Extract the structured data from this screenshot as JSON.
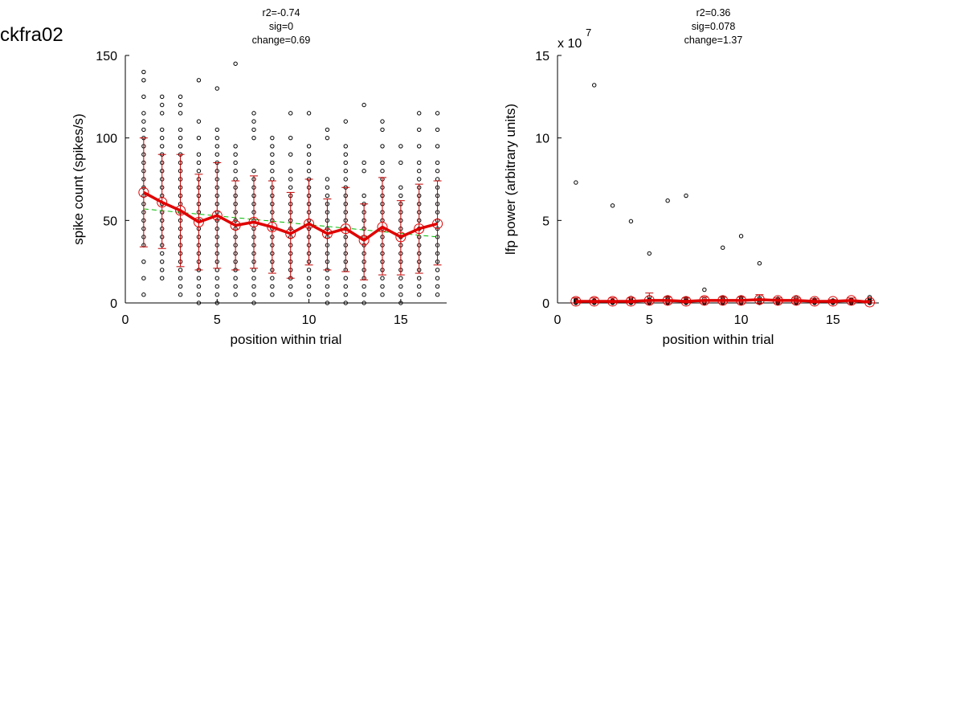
{
  "figure": {
    "title": "ckfra02"
  },
  "colors": {
    "points": "#000000",
    "mean_line": "#e00000",
    "error_bars": "#c00000",
    "fit_line": "#00bb00"
  },
  "chart_data": [
    {
      "type": "scatter",
      "stats": [
        "r2=-0.74",
        "sig=0",
        "change=0.69"
      ],
      "xlabel": "position within trial",
      "ylabel": "spike count (spikes/s)",
      "xlim": [
        0,
        17.5
      ],
      "ylim": [
        0,
        150
      ],
      "xticks": [
        0,
        5,
        10,
        15
      ],
      "yticks": [
        0,
        50,
        100,
        150
      ],
      "grid": false,
      "points": [
        {
          "x": 1,
          "y": [
            5,
            15,
            25,
            35,
            40,
            45,
            50,
            55,
            60,
            65,
            70,
            75,
            80,
            85,
            90,
            95,
            100,
            105,
            110,
            115,
            125,
            135,
            140
          ]
        },
        {
          "x": 2,
          "y": [
            15,
            20,
            25,
            30,
            35,
            40,
            45,
            50,
            55,
            60,
            65,
            70,
            75,
            80,
            85,
            90,
            95,
            100,
            105,
            115,
            120,
            125
          ]
        },
        {
          "x": 3,
          "y": [
            5,
            10,
            15,
            20,
            25,
            30,
            35,
            40,
            45,
            50,
            55,
            60,
            65,
            70,
            75,
            80,
            85,
            90,
            95,
            100,
            105,
            115,
            120,
            125
          ]
        },
        {
          "x": 4,
          "y": [
            0,
            5,
            10,
            15,
            20,
            25,
            30,
            35,
            40,
            45,
            50,
            55,
            60,
            65,
            70,
            75,
            80,
            85,
            90,
            100,
            110,
            135
          ]
        },
        {
          "x": 5,
          "y": [
            0,
            5,
            10,
            15,
            20,
            25,
            30,
            35,
            40,
            45,
            50,
            55,
            60,
            65,
            70,
            75,
            80,
            85,
            90,
            95,
            100,
            105,
            130
          ]
        },
        {
          "x": 6,
          "y": [
            5,
            10,
            15,
            20,
            25,
            30,
            35,
            40,
            45,
            50,
            55,
            60,
            65,
            70,
            75,
            80,
            85,
            90,
            95,
            145
          ]
        },
        {
          "x": 7,
          "y": [
            0,
            5,
            10,
            15,
            20,
            25,
            30,
            35,
            40,
            45,
            50,
            55,
            60,
            65,
            70,
            75,
            80,
            100,
            105,
            110,
            115
          ]
        },
        {
          "x": 8,
          "y": [
            5,
            10,
            15,
            20,
            25,
            30,
            35,
            40,
            45,
            50,
            55,
            60,
            65,
            70,
            75,
            80,
            85,
            90,
            95,
            100
          ]
        },
        {
          "x": 9,
          "y": [
            5,
            10,
            15,
            20,
            25,
            30,
            35,
            40,
            45,
            50,
            55,
            60,
            65,
            70,
            75,
            80,
            90,
            100,
            115
          ]
        },
        {
          "x": 10,
          "y": [
            5,
            10,
            15,
            20,
            25,
            30,
            35,
            40,
            45,
            50,
            55,
            60,
            65,
            70,
            75,
            80,
            85,
            90,
            95,
            115
          ]
        },
        {
          "x": 11,
          "y": [
            0,
            5,
            10,
            15,
            20,
            25,
            30,
            35,
            40,
            45,
            50,
            55,
            60,
            65,
            70,
            75,
            100,
            105
          ]
        },
        {
          "x": 12,
          "y": [
            0,
            5,
            10,
            15,
            20,
            25,
            30,
            35,
            40,
            45,
            50,
            55,
            60,
            65,
            70,
            75,
            80,
            85,
            90,
            95,
            110
          ]
        },
        {
          "x": 13,
          "y": [
            0,
            5,
            10,
            15,
            20,
            25,
            30,
            35,
            40,
            45,
            50,
            55,
            60,
            65,
            80,
            85,
            120
          ]
        },
        {
          "x": 14,
          "y": [
            5,
            10,
            15,
            20,
            25,
            30,
            35,
            40,
            45,
            50,
            55,
            60,
            65,
            70,
            75,
            80,
            85,
            95,
            105,
            110
          ]
        },
        {
          "x": 15,
          "y": [
            0,
            5,
            10,
            15,
            20,
            25,
            30,
            35,
            40,
            45,
            50,
            55,
            60,
            65,
            70,
            85,
            95
          ]
        },
        {
          "x": 16,
          "y": [
            5,
            10,
            15,
            20,
            25,
            30,
            35,
            40,
            45,
            50,
            55,
            60,
            65,
            70,
            75,
            80,
            85,
            95,
            105,
            115
          ]
        },
        {
          "x": 17,
          "y": [
            5,
            10,
            15,
            20,
            25,
            30,
            35,
            40,
            45,
            50,
            55,
            60,
            65,
            70,
            75,
            80,
            85,
            95,
            105,
            115
          ]
        }
      ],
      "mean": {
        "x": [
          1,
          2,
          3,
          4,
          5,
          6,
          7,
          8,
          9,
          10,
          11,
          12,
          13,
          14,
          15,
          16,
          17
        ],
        "y": [
          67,
          61,
          56,
          49,
          53,
          47,
          49,
          46,
          42,
          48,
          42,
          45,
          38,
          46,
          40,
          45,
          48
        ]
      },
      "error": {
        "x": [
          1,
          2,
          3,
          4,
          5,
          6,
          7,
          8,
          9,
          10,
          11,
          12,
          13,
          14,
          15,
          16,
          17
        ],
        "upper": [
          100,
          90,
          90,
          78,
          85,
          74,
          77,
          74,
          67,
          75,
          63,
          70,
          60,
          76,
          62,
          72,
          74
        ],
        "lower": [
          34,
          33,
          22,
          20,
          21,
          20,
          21,
          18,
          15,
          23,
          20,
          19,
          14,
          17,
          17,
          18,
          23
        ]
      },
      "fit": {
        "x": [
          1,
          17
        ],
        "y": [
          57,
          40
        ]
      }
    },
    {
      "type": "scatter",
      "stats": [
        "r2=0.36",
        "sig=0.078",
        "change=1.37"
      ],
      "xlabel": "position within trial",
      "ylabel": "lfp power (arbitrary units)",
      "axis_multiplier_base": "x 10",
      "axis_multiplier_exp": "7",
      "xlim": [
        0,
        17.5
      ],
      "ylim": [
        0,
        15
      ],
      "xticks": [
        0,
        5,
        10,
        15
      ],
      "yticks": [
        0,
        5,
        10,
        15
      ],
      "grid": false,
      "points": [
        {
          "x": 1,
          "y": [
            0,
            0.05,
            0.1,
            0.15,
            0.2,
            7.3
          ]
        },
        {
          "x": 2,
          "y": [
            0,
            0.05,
            0.1,
            0.15,
            13.2
          ]
        },
        {
          "x": 3,
          "y": [
            0,
            0.05,
            0.1,
            0.15,
            5.9
          ]
        },
        {
          "x": 4,
          "y": [
            0,
            0.05,
            0.1,
            0.2,
            0.3,
            4.95
          ]
        },
        {
          "x": 5,
          "y": [
            0,
            0.05,
            0.1,
            0.2,
            0.35,
            3.0
          ]
        },
        {
          "x": 6,
          "y": [
            0,
            0.05,
            0.1,
            0.2,
            0.3,
            6.2
          ]
        },
        {
          "x": 7,
          "y": [
            0,
            0.05,
            0.1,
            0.15,
            0.25,
            6.5
          ]
        },
        {
          "x": 8,
          "y": [
            0,
            0.05,
            0.1,
            0.25,
            0.8
          ]
        },
        {
          "x": 9,
          "y": [
            0,
            0.05,
            0.1,
            0.2,
            0.3,
            3.35
          ]
        },
        {
          "x": 10,
          "y": [
            0,
            0.05,
            0.1,
            0.2,
            0.3,
            4.05
          ]
        },
        {
          "x": 11,
          "y": [
            0,
            0.05,
            0.1,
            0.2,
            0.3,
            2.4
          ]
        },
        {
          "x": 12,
          "y": [
            0,
            0.05,
            0.1,
            0.15,
            0.25
          ]
        },
        {
          "x": 13,
          "y": [
            0,
            0.05,
            0.1,
            0.2,
            0.3
          ]
        },
        {
          "x": 14,
          "y": [
            0,
            0.05,
            0.1,
            0.15,
            0.2
          ]
        },
        {
          "x": 15,
          "y": [
            0,
            0.05,
            0.1,
            0.15
          ]
        },
        {
          "x": 16,
          "y": [
            0,
            0.05,
            0.1,
            0.15,
            0.2
          ]
        },
        {
          "x": 17,
          "y": [
            0,
            0.05,
            0.1,
            0.15,
            0.25,
            0.35
          ]
        }
      ],
      "mean": {
        "x": [
          1,
          2,
          3,
          4,
          5,
          6,
          7,
          8,
          9,
          10,
          11,
          12,
          13,
          14,
          15,
          16,
          17
        ],
        "y": [
          0.1,
          0.1,
          0.1,
          0.1,
          0.15,
          0.15,
          0.1,
          0.15,
          0.15,
          0.15,
          0.2,
          0.15,
          0.15,
          0.1,
          0.1,
          0.15,
          0.05
        ]
      },
      "error": {
        "x": [
          1,
          2,
          3,
          4,
          5,
          6,
          7,
          8,
          9,
          10,
          11,
          12,
          13,
          14,
          15,
          16,
          17
        ],
        "upper": [
          0.3,
          0.3,
          0.3,
          0.3,
          0.6,
          0.35,
          0.3,
          0.35,
          0.35,
          0.35,
          0.5,
          0.3,
          0.3,
          0.25,
          0.2,
          0.3,
          0.15
        ],
        "lower": [
          0,
          0,
          0,
          0,
          0,
          0,
          0,
          0,
          0,
          0,
          0,
          0,
          0,
          0,
          0,
          0,
          0
        ]
      },
      "fit": {
        "x": [
          1,
          17
        ],
        "y": [
          0.1,
          0.15
        ]
      }
    }
  ]
}
